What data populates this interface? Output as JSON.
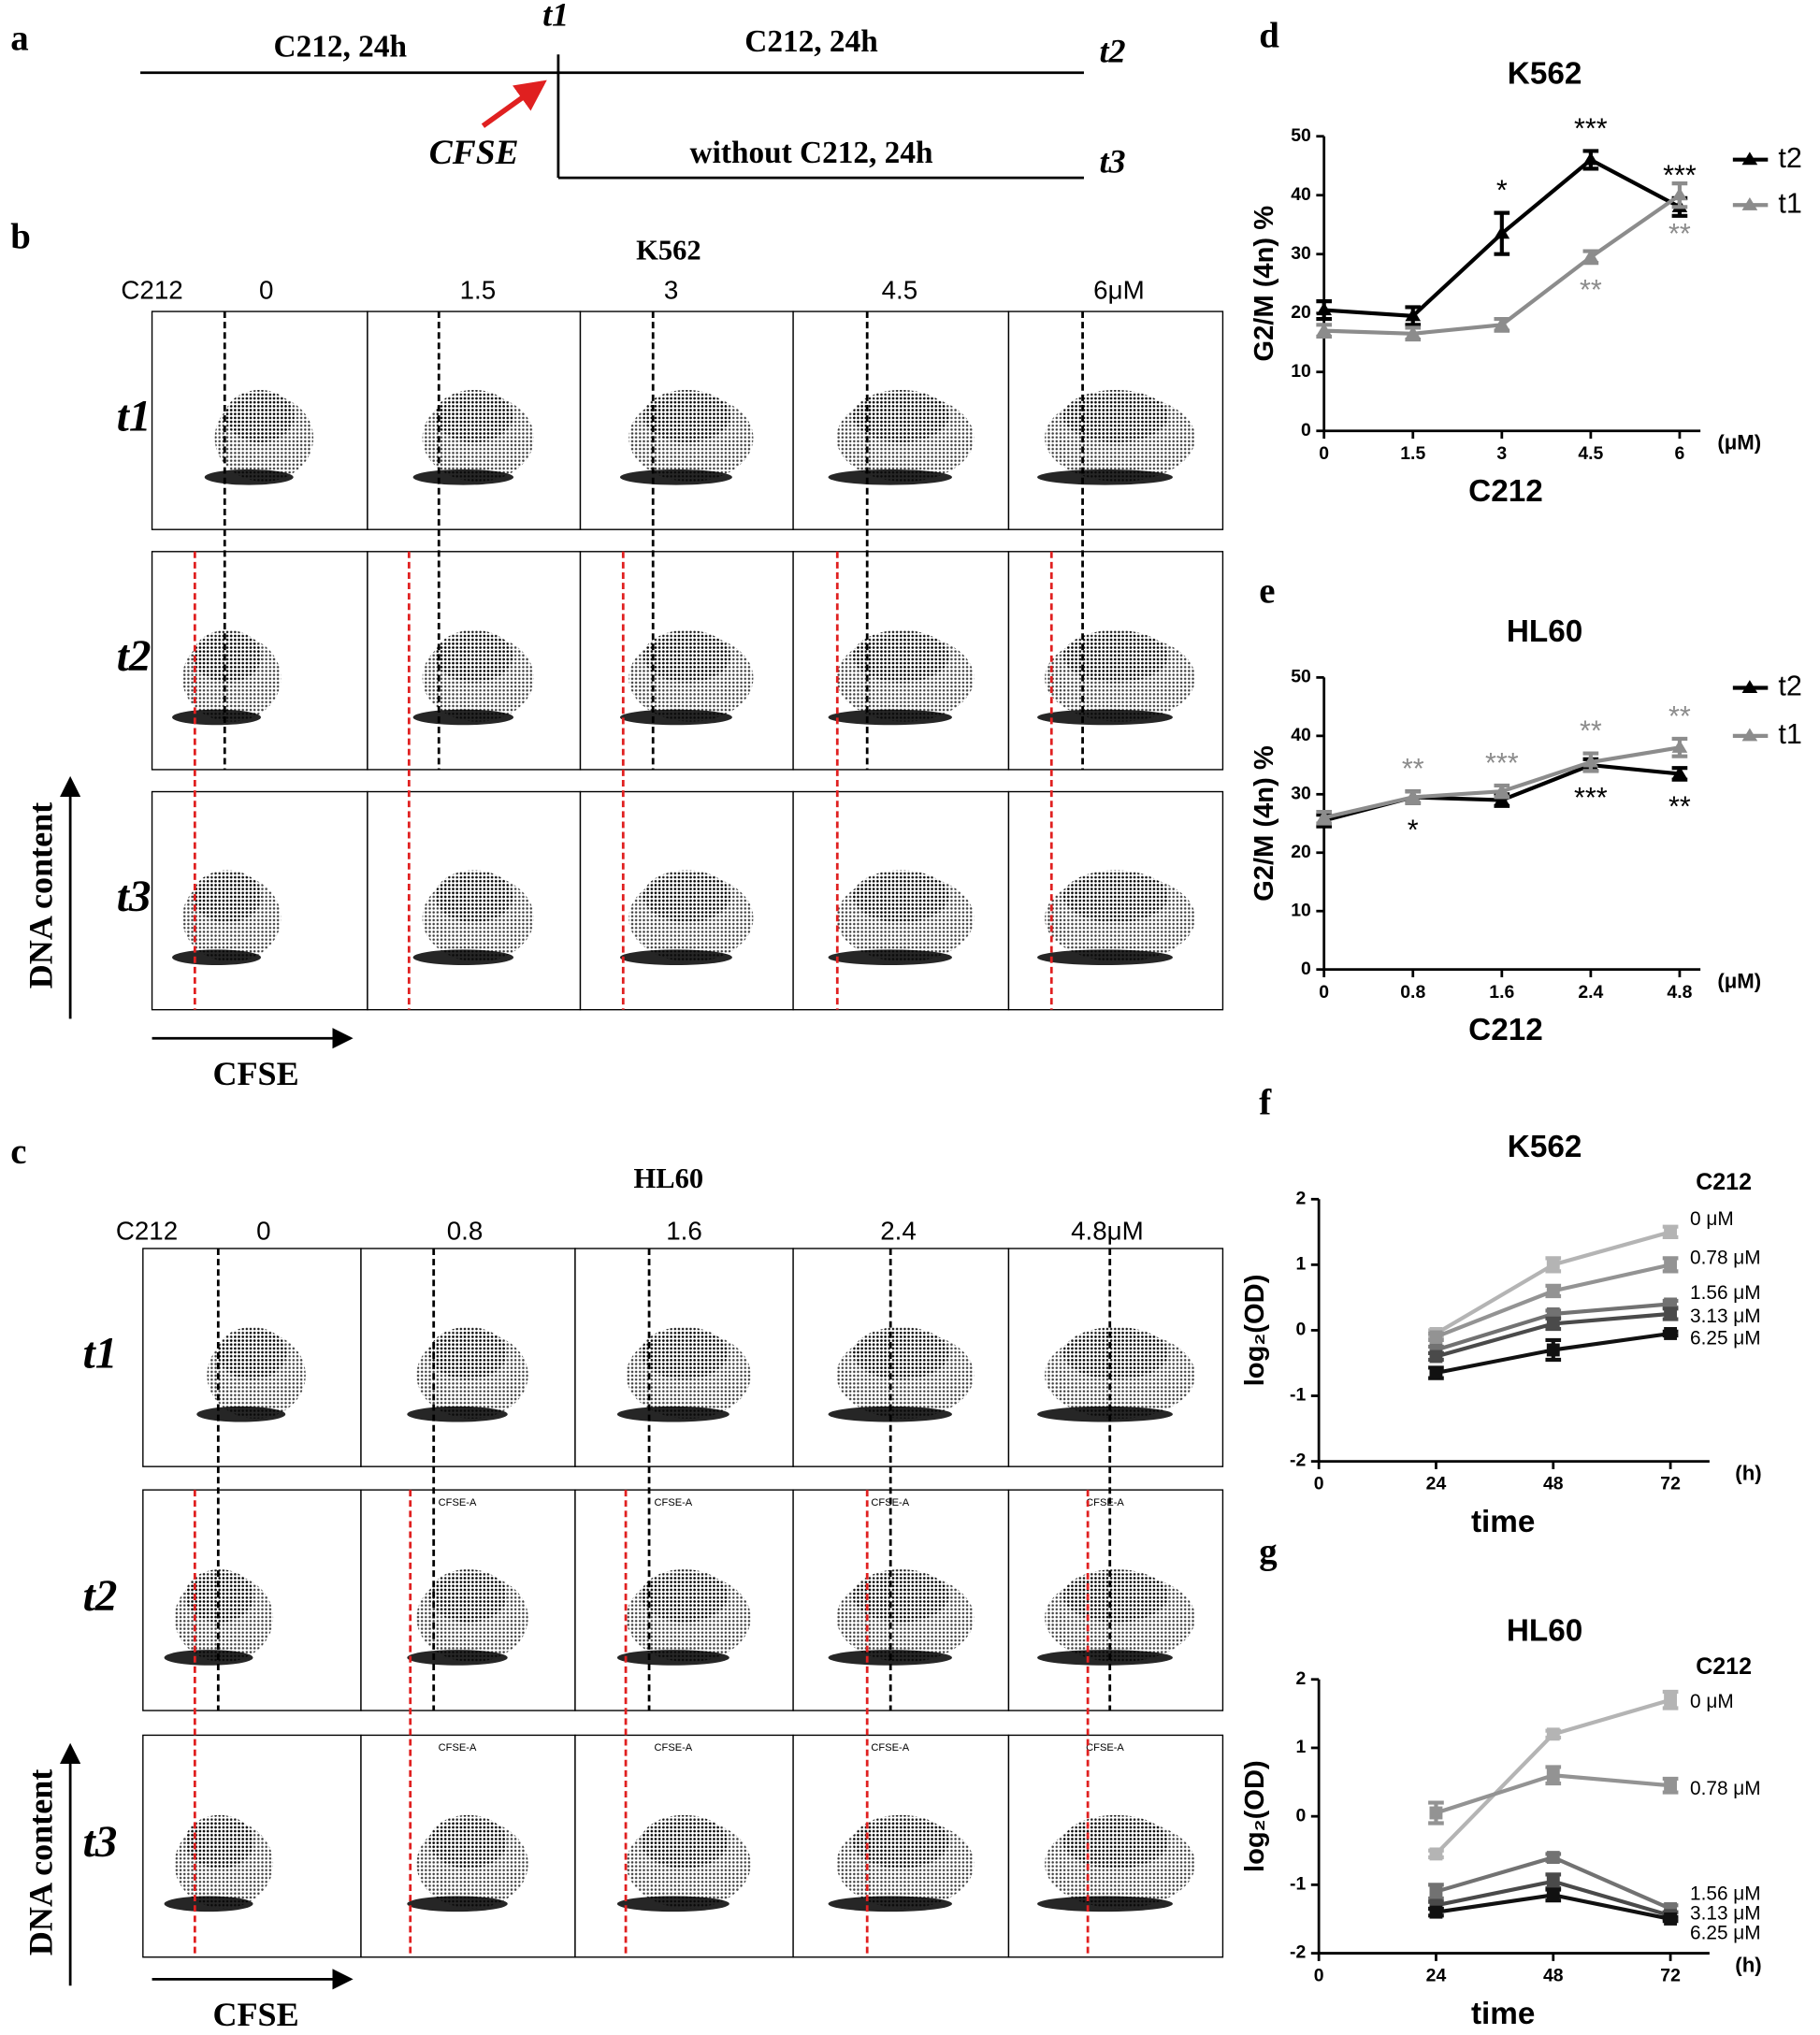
{
  "panel_labels": [
    "a",
    "b",
    "c",
    "d",
    "e",
    "f",
    "g"
  ],
  "schematic": {
    "treatment_before": "C212,  24h",
    "t1": "t1",
    "treatment_after": "C212, 24h",
    "t2": "t2",
    "stain": "CFSE",
    "washout": "without C212, 24h",
    "t3": "t3"
  },
  "flow_panels": [
    {
      "title": "K562",
      "drug": "C212",
      "doses": [
        "0",
        "1.5",
        "3",
        "4.5",
        "6μM"
      ],
      "rows": [
        "t1",
        "t2",
        "t3"
      ],
      "y_axis": "DNA content",
      "x_axis": "CFSE"
    },
    {
      "title": "HL60",
      "drug": "C212",
      "doses": [
        "0",
        "0.8",
        "1.6",
        "2.4",
        "4.8μM"
      ],
      "rows": [
        "t1",
        "t2",
        "t3"
      ],
      "y_axis": "DNA content",
      "x_axis": "CFSE",
      "gate_label": "CFSE-A"
    }
  ],
  "chart_data": [
    {
      "type": "line",
      "title": "K562",
      "x_label": "C212",
      "x_unit": "(μM)",
      "y_label": "G2/M (4n) %",
      "categories": [
        "0",
        "1.5",
        "3",
        "4.5",
        "6"
      ],
      "ylim": [
        0,
        50
      ],
      "yticks": [
        0,
        10,
        20,
        30,
        40,
        50
      ],
      "legend": "top-right",
      "marker": "triangle",
      "series": [
        {
          "name": "t2",
          "color": "#000000",
          "values": [
            20.5,
            19.5,
            33.5,
            46,
            38
          ],
          "errors": [
            1.5,
            1.5,
            3.5,
            1.5,
            1.5
          ],
          "significance": [
            null,
            null,
            "*",
            "***",
            "***"
          ]
        },
        {
          "name": "t1",
          "color": "#8c8c8c",
          "values": [
            17,
            16.5,
            18,
            29.5,
            40
          ],
          "errors": [
            1,
            1,
            1,
            1,
            2
          ],
          "significance": [
            null,
            null,
            null,
            "**",
            "**"
          ]
        }
      ]
    },
    {
      "type": "line",
      "title": "HL60",
      "x_label": "C212",
      "x_unit": "(μM)",
      "y_label": "G2/M (4n) %",
      "categories": [
        "0",
        "0.8",
        "1.6",
        "2.4",
        "4.8"
      ],
      "ylim": [
        0,
        50
      ],
      "yticks": [
        0,
        10,
        20,
        30,
        40,
        50
      ],
      "legend": "top-right",
      "marker": "triangle",
      "series": [
        {
          "name": "t2",
          "color": "#000000",
          "values": [
            25.5,
            29.5,
            29,
            35,
            33.5
          ],
          "errors": [
            1,
            1,
            1,
            1,
            1
          ],
          "significance": [
            null,
            "*",
            null,
            "***",
            "**"
          ]
        },
        {
          "name": "t1",
          "color": "#8c8c8c",
          "values": [
            26,
            29.5,
            30.5,
            35.5,
            38
          ],
          "errors": [
            1,
            1,
            1,
            1.5,
            1.5
          ],
          "significance": [
            null,
            "**",
            "***",
            "**",
            "**"
          ]
        }
      ]
    },
    {
      "type": "line",
      "title": "K562",
      "x_label": "time",
      "x_unit": "(h)",
      "y_label": "log₂(OD)",
      "legend_title": "C212",
      "legend": "right",
      "marker": "square",
      "x": [
        24,
        48,
        72
      ],
      "xlim": [
        0,
        80
      ],
      "xticks": [
        0,
        24,
        48,
        72
      ],
      "ylim": [
        -2,
        2
      ],
      "yticks": [
        -2,
        -1,
        0,
        1,
        2
      ],
      "series": [
        {
          "name": "0 μM",
          "color": "#b4b4b4",
          "values": [
            -0.05,
            1.0,
            1.5
          ],
          "errors": [
            0.05,
            0.1,
            0.08
          ]
        },
        {
          "name": "0.78 μM",
          "color": "#939393",
          "values": [
            -0.1,
            0.6,
            1.0
          ],
          "errors": [
            0.05,
            0.08,
            0.1
          ]
        },
        {
          "name": "1.56 μM",
          "color": "#727272",
          "values": [
            -0.3,
            0.25,
            0.4
          ],
          "errors": [
            0.05,
            0.05,
            0.05
          ]
        },
        {
          "name": "3.13 μM",
          "color": "#4a4a4a",
          "values": [
            -0.4,
            0.1,
            0.25
          ],
          "errors": [
            0.05,
            0.08,
            0.08
          ]
        },
        {
          "name": "6.25 μM",
          "color": "#111111",
          "values": [
            -0.65,
            -0.3,
            -0.05
          ],
          "errors": [
            0.08,
            0.15,
            0.03
          ]
        }
      ]
    },
    {
      "type": "line",
      "title": "HL60",
      "x_label": "time",
      "x_unit": "(h)",
      "y_label": "log₂(OD)",
      "legend_title": "C212",
      "legend": "right",
      "marker": "square",
      "x": [
        24,
        48,
        72
      ],
      "xlim": [
        0,
        80
      ],
      "xticks": [
        0,
        24,
        48,
        72
      ],
      "ylim": [
        -2,
        2
      ],
      "yticks": [
        -2,
        -1,
        0,
        1,
        2
      ],
      "series": [
        {
          "name": "0 μM",
          "color": "#b4b4b4",
          "values": [
            -0.55,
            1.2,
            1.7
          ],
          "errors": [
            0.05,
            0.05,
            0.12
          ]
        },
        {
          "name": "0.78 μM",
          "color": "#939393",
          "values": [
            0.05,
            0.6,
            0.45
          ],
          "errors": [
            0.15,
            0.12,
            0.1
          ]
        },
        {
          "name": "1.56 μM",
          "color": "#727272",
          "values": [
            -1.1,
            -0.6,
            -1.35
          ],
          "errors": [
            0.1,
            0.05,
            0.05
          ]
        },
        {
          "name": "3.13 μM",
          "color": "#4a4a4a",
          "values": [
            -1.3,
            -0.95,
            -1.45
          ],
          "errors": [
            0.05,
            0.1,
            0.05
          ]
        },
        {
          "name": "6.25 μM",
          "color": "#111111",
          "values": [
            -1.4,
            -1.15,
            -1.5
          ],
          "errors": [
            0.05,
            0.08,
            0.03
          ]
        }
      ]
    }
  ]
}
